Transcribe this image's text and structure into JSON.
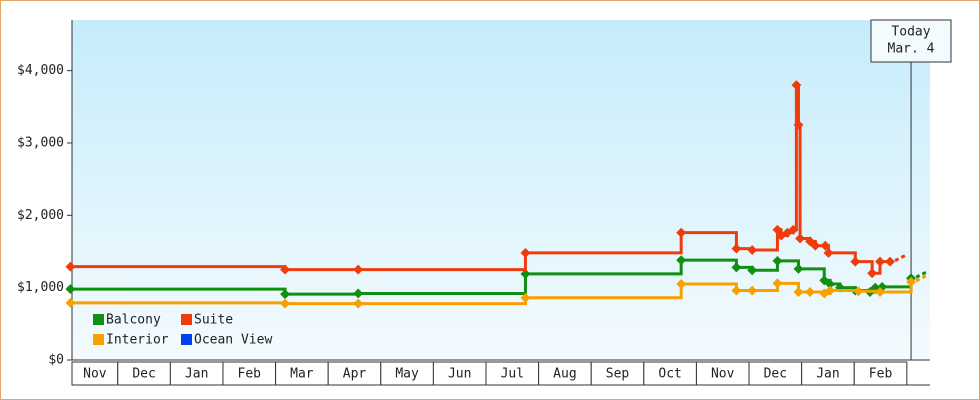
{
  "chart_data": {
    "type": "step-line",
    "categories": [
      "Nov",
      "Dec",
      "Jan",
      "Feb",
      "Mar",
      "Apr",
      "May",
      "Jun",
      "Jul",
      "Aug",
      "Sep",
      "Oct",
      "Nov",
      "Dec",
      "Jan",
      "Feb"
    ],
    "xlim": [
      0.13,
      16.44
    ],
    "ylim": [
      0,
      4700
    ],
    "yticks": [
      {
        "value": 0,
        "label": "$0"
      },
      {
        "value": 1000,
        "label": "$1,000"
      },
      {
        "value": 2000,
        "label": "$2,000"
      },
      {
        "value": 3000,
        "label": "$3,000"
      },
      {
        "value": 4000,
        "label": "$4,000"
      }
    ],
    "annotation": {
      "lines": [
        "Today",
        "Mar. 4"
      ],
      "x": 16.08
    },
    "series": [
      {
        "name": "Balcony",
        "color": "#109010",
        "x": [
          0.1,
          4.18,
          5.57,
          8.75,
          11.71,
          12.76,
          13.06,
          13.54,
          13.94,
          14.43,
          14.54,
          14.73,
          15.02,
          15.3,
          15.4,
          15.53,
          16.08
        ],
        "values": [
          980,
          910,
          920,
          1190,
          1380,
          1280,
          1240,
          1370,
          1260,
          1100,
          1050,
          1000,
          960,
          940,
          1000,
          1010,
          1130
        ]
      },
      {
        "name": "Suite",
        "color": "#f03c0c",
        "x": [
          0.1,
          4.18,
          5.57,
          8.75,
          11.71,
          12.76,
          13.06,
          13.54,
          13.61,
          13.73,
          13.84,
          13.9,
          13.94,
          13.97,
          14.16,
          14.26,
          14.45,
          14.51,
          15.02,
          15.34,
          15.49,
          15.68
        ],
        "values": [
          1290,
          1250,
          1250,
          1480,
          1760,
          1540,
          1520,
          1800,
          1720,
          1760,
          1800,
          3800,
          3250,
          1680,
          1640,
          1580,
          1580,
          1480,
          1360,
          1200,
          1360,
          1360
        ]
      },
      {
        "name": "Interior",
        "color": "#f8a000",
        "x": [
          0.1,
          4.18,
          5.57,
          8.75,
          11.71,
          12.76,
          13.06,
          13.54,
          13.94,
          14.16,
          14.43,
          14.54,
          15.08,
          15.49,
          16.08
        ],
        "values": [
          790,
          780,
          780,
          860,
          1050,
          960,
          960,
          1060,
          940,
          940,
          920,
          960,
          950,
          940,
          1080
        ]
      },
      {
        "name": "Ocean View",
        "color": "#0040f0",
        "x": [],
        "values": []
      }
    ]
  }
}
